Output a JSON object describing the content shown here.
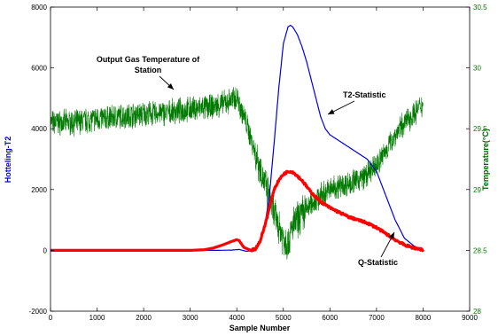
{
  "chart_data": {
    "type": "line",
    "xlabel": "Sample Number",
    "ylabel_left": "Hotteling-T2",
    "ylabel_right": "Temperature(°C)",
    "xlim": [
      0,
      9000
    ],
    "ylim_left": [
      -2000,
      8000
    ],
    "ylim_right": [
      28,
      30.5
    ],
    "x_ticks": [
      "0",
      "1000",
      "2000",
      "3000",
      "4000",
      "5000",
      "6000",
      "7000",
      "8000",
      "9000"
    ],
    "y_left_ticks": [
      "-2000",
      "0",
      "2000",
      "4000",
      "6000",
      "8000"
    ],
    "y_right_ticks": [
      "28",
      "28.5",
      "29",
      "29.5",
      "30",
      "30.5"
    ],
    "grid": false,
    "colors": {
      "t2": "#0000dd",
      "q": "#ff0000",
      "temperature": "#007a00",
      "left_axis_label": "#0000cc",
      "right_axis_label": "#006400",
      "right_tick_label": "#008000"
    },
    "series": [
      {
        "name": "T2-Statistic",
        "axis": "left",
        "color": "#0000dd",
        "x": [
          0,
          1000,
          2000,
          3000,
          3300,
          3600,
          3900,
          4050,
          4200,
          4400,
          4500,
          4600,
          4700,
          4800,
          4900,
          5000,
          5100,
          5150,
          5200,
          5300,
          5400,
          5500,
          5600,
          5700,
          5800,
          5900,
          6000,
          6200,
          6400,
          6600,
          6800,
          7000,
          7200,
          7400,
          7600,
          7800,
          8000
        ],
        "values": [
          0,
          0,
          0,
          0,
          0,
          0,
          10,
          30,
          -30,
          0,
          250,
          800,
          1800,
          3500,
          5300,
          6800,
          7350,
          7400,
          7350,
          7100,
          6700,
          6200,
          5600,
          5000,
          4400,
          4000,
          3800,
          3600,
          3400,
          3200,
          3000,
          2600,
          1800,
          1000,
          400,
          150,
          0
        ]
      },
      {
        "name": "Q-Statistic",
        "axis": "left",
        "color": "#ff0000",
        "x": [
          0,
          1000,
          2000,
          3000,
          3300,
          3500,
          3700,
          3900,
          4000,
          4050,
          4150,
          4300,
          4400,
          4500,
          4600,
          4700,
          4800,
          4900,
          5000,
          5100,
          5200,
          5300,
          5400,
          5500,
          5600,
          5800,
          6000,
          6200,
          6400,
          6600,
          6800,
          7000,
          7200,
          7400,
          7600,
          7800,
          8000
        ],
        "values": [
          0,
          0,
          0,
          0,
          20,
          80,
          180,
          300,
          350,
          320,
          100,
          0,
          50,
          300,
          800,
          1400,
          2000,
          2300,
          2500,
          2600,
          2580,
          2450,
          2300,
          2100,
          1900,
          1600,
          1400,
          1250,
          1100,
          1000,
          900,
          750,
          550,
          350,
          180,
          80,
          20
        ]
      },
      {
        "name": "Output Gas Temperature of Station",
        "axis": "right",
        "color": "#007a00",
        "x": [
          0,
          500,
          1000,
          1500,
          2000,
          2500,
          3000,
          3500,
          3800,
          4000,
          4200,
          4400,
          4600,
          4800,
          5000,
          5100,
          5200,
          5400,
          5600,
          5800,
          6000,
          6200,
          6400,
          6600,
          6800,
          7000,
          7200,
          7400,
          7600,
          7800,
          8000
        ],
        "values": [
          29.55,
          29.55,
          29.58,
          29.6,
          29.62,
          29.63,
          29.66,
          29.68,
          29.72,
          29.76,
          29.55,
          29.3,
          29.05,
          28.8,
          28.6,
          28.55,
          28.7,
          28.8,
          28.88,
          28.95,
          29.0,
          29.03,
          29.05,
          29.08,
          29.12,
          29.2,
          29.32,
          29.45,
          29.55,
          29.62,
          29.7
        ]
      }
    ],
    "annotations": [
      {
        "text": "Output Gas Temperature of",
        "text2": "Station"
      },
      {
        "text": "T2-Statistic"
      },
      {
        "text": "Q-Statistic"
      }
    ]
  }
}
